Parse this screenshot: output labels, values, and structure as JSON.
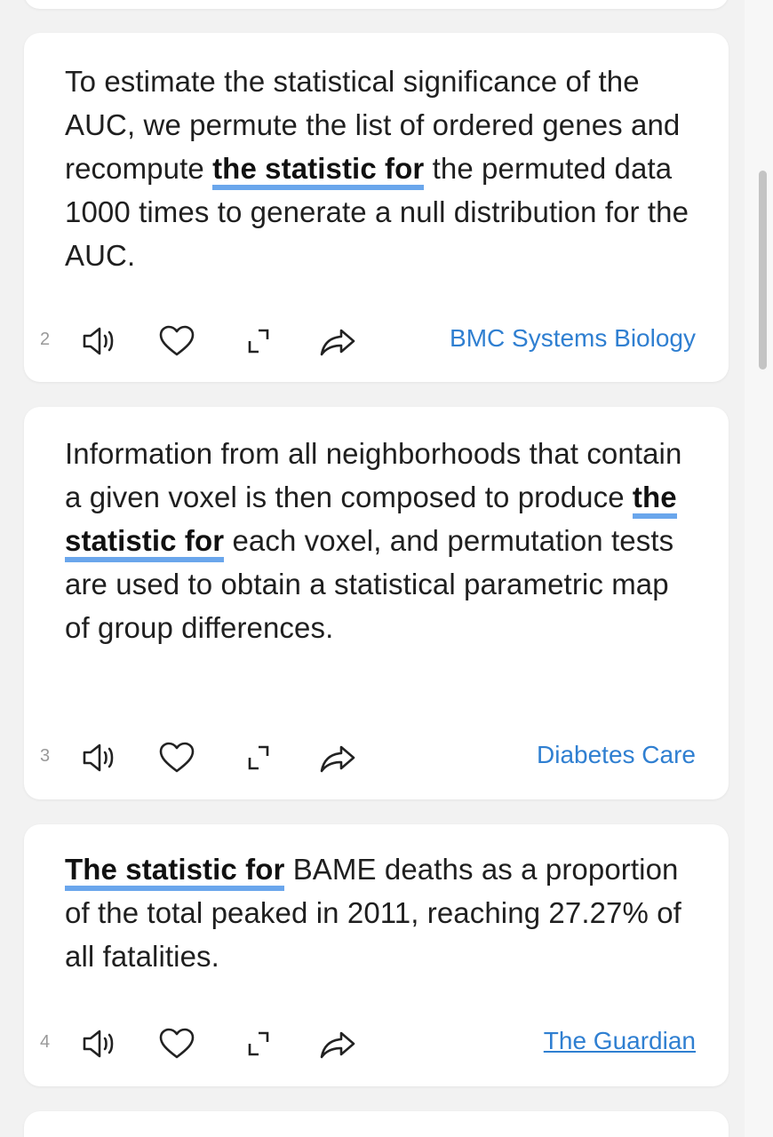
{
  "cards": [
    {
      "number": "2",
      "text_before": "To estimate the statistical significance of the AUC, we permute the list of ordered genes and recompute ",
      "highlight": "the statistic for",
      "text_after": " the permuted data 1000 times to generate a null distribution for the AUC.",
      "source": "BMC Systems Biology"
    },
    {
      "number": "3",
      "text_before": "Information from all neighborhoods that contain a given voxel is then composed to produce ",
      "highlight": "the statistic for",
      "text_after": " each voxel, and permutation tests are used to obtain a statistical parametric map of group differences.",
      "source": "Diabetes Care"
    },
    {
      "number": "4",
      "text_before": "",
      "highlight": "The statistic for",
      "text_after": " BAME deaths as a proportion of the total peaked in 2011, reaching 27.27% of all fatalities.",
      "source": "The Guardian"
    }
  ],
  "icons": {
    "speaker": "speaker-icon",
    "heart": "heart-icon",
    "expand": "expand-icon",
    "share": "share-icon"
  },
  "colors": {
    "highlight_underline": "#6aa6ec",
    "source_link": "#2f7fd1",
    "card_bg": "#ffffff",
    "page_bg": "#f2f2f2"
  }
}
